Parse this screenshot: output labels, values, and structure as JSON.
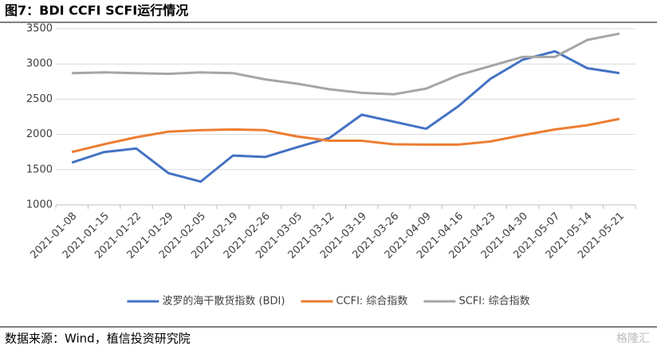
{
  "chart_data": {
    "type": "line",
    "title": "图7：BDI CCFI SCFI运行情况",
    "source": "数据来源：Wind，植信投资研究院",
    "watermark": "格隆汇",
    "categories": [
      "2021-01-08",
      "2021-01-15",
      "2021-01-22",
      "2021-01-29",
      "2021-02-05",
      "2021-02-19",
      "2021-02-26",
      "2021-03-05",
      "2021-03-12",
      "2021-03-19",
      "2021-03-26",
      "2021-04-09",
      "2021-04-16",
      "2021-04-23",
      "2021-04-30",
      "2021-05-07",
      "2021-05-14",
      "2021-05-21"
    ],
    "series": [
      {
        "name": "波罗的海干散货指数 (BDI)",
        "color": "#4472c4",
        "values": [
          1600,
          1750,
          1800,
          1450,
          1330,
          1700,
          1680,
          1820,
          1950,
          2280,
          2180,
          2080,
          2400,
          2790,
          3060,
          3180,
          2940,
          2870
        ]
      },
      {
        "name": "CCFI: 综合指数",
        "color": "#ed7d31",
        "values": [
          1750,
          1860,
          1960,
          2040,
          2060,
          2070,
          2060,
          1970,
          1910,
          1910,
          1860,
          1855,
          1855,
          1900,
          1990,
          2070,
          2130,
          2220
        ]
      },
      {
        "name": "SCFI: 综合指数",
        "color": "#a5a5a5",
        "values": [
          2870,
          2880,
          2870,
          2860,
          2880,
          2870,
          2780,
          2720,
          2640,
          2590,
          2570,
          2650,
          2840,
          2970,
          3100,
          3100,
          3340,
          3430
        ]
      }
    ],
    "ylim": [
      1000,
      3500
    ],
    "yticks": [
      1000,
      1500,
      2000,
      2500,
      3000,
      3500
    ],
    "grid": true,
    "legend": "bottom"
  }
}
